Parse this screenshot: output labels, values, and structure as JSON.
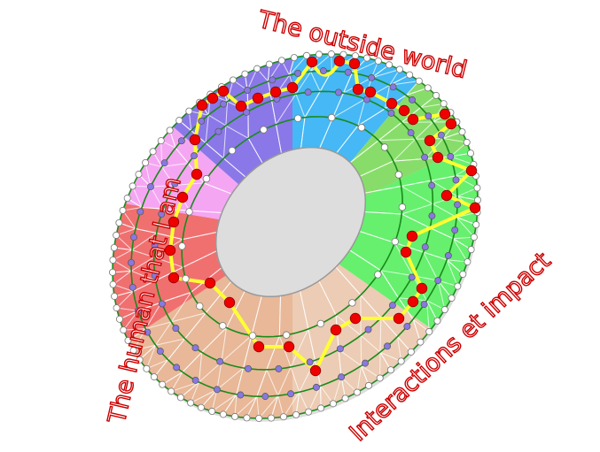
{
  "labels": {
    "top": "The outside world",
    "left": "The human that I am",
    "bottom_right": "Interactions et impact"
  },
  "colors": {
    "label_outline": "#cc0000",
    "ring_line": "#1a8a1a",
    "path": "#ffff33",
    "path_node": "#ee0000",
    "inner_node": "#8878e0",
    "outer_node": "#ffffff",
    "sectors": [
      "#45b8f5",
      "#88dd6a",
      "#66f06e",
      "#ecccb4",
      "#e8b898",
      "#f07070",
      "#f5a6f2",
      "#8a78e8"
    ]
  }
}
